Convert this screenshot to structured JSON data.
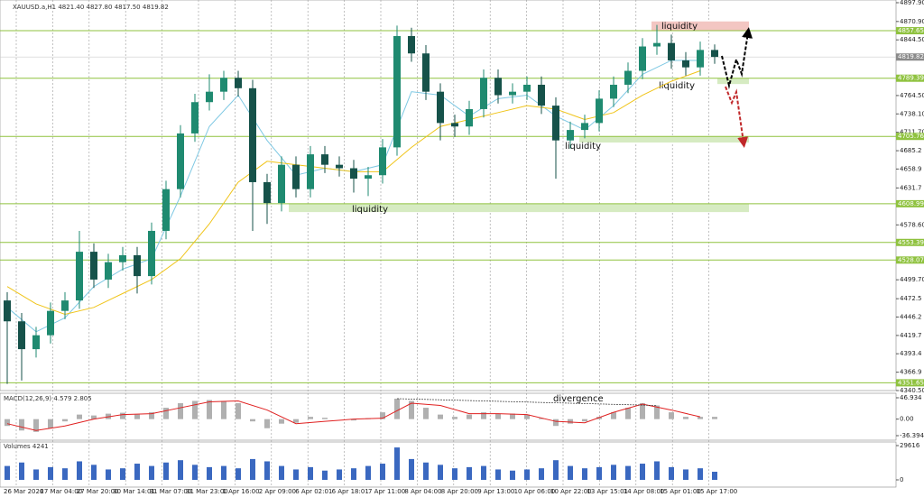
{
  "chart_data": {
    "type": "candlestick",
    "title": "XAUUSD.a,H1 4821.40 4827.80 4817.50 4819.82",
    "categories": [
      "26 Mar 2026",
      "27 Mar 04:00",
      "27 Mar 20:00",
      "30 Mar 14:01",
      "31 Mar 07:00",
      "31 Mar 23:00",
      "1 Apr 16:00",
      "2 Apr 09:00",
      "6 Apr 02:01",
      "6 Apr 18:01",
      "7 Apr 11:00",
      "8 Apr 04:00",
      "8 Apr 20:00",
      "9 Apr 13:00",
      "10 Apr 06:00",
      "10 Apr 22:00",
      "13 Apr 15:01",
      "14 Apr 08:00",
      "15 Apr 01:00",
      "15 Apr 17:00"
    ],
    "open": [
      4470,
      4440,
      4400,
      4420,
      4455,
      4470,
      4540,
      4500,
      4525,
      4535,
      4505,
      4570,
      4630,
      4710,
      4755,
      4770,
      4790,
      4775,
      4640,
      4610,
      4665,
      4630,
      4680,
      4665,
      4660,
      4645,
      4650,
      4690,
      4850,
      4825,
      4770,
      4725,
      4720,
      4745,
      4790,
      4765,
      4770,
      4780,
      4750,
      4700,
      4715,
      4725,
      4760,
      4780,
      4800,
      4835,
      4840,
      4815,
      4805,
      4830
    ],
    "high": [
      4482,
      4452,
      4432,
      4467,
      4482,
      4570,
      4552,
      4537,
      4547,
      4547,
      4582,
      4642,
      4722,
      4767,
      4795,
      4800,
      4800,
      4787,
      4652,
      4677,
      4677,
      4692,
      4692,
      4677,
      4672,
      4662,
      4702,
      4865,
      4862,
      4837,
      4782,
      4737,
      4757,
      4802,
      4802,
      4782,
      4792,
      4792,
      4762,
      4727,
      4737,
      4772,
      4792,
      4812,
      4847,
      4866,
      4852,
      4827,
      4842,
      4838
    ],
    "low": [
      4350,
      4355,
      4388,
      4408,
      4443,
      4458,
      4488,
      4488,
      4513,
      4480,
      4493,
      4558,
      4618,
      4698,
      4743,
      4758,
      4763,
      4570,
      4580,
      4598,
      4618,
      4618,
      4653,
      4648,
      4625,
      4620,
      4638,
      4678,
      4813,
      4758,
      4700,
      4705,
      4708,
      4733,
      4753,
      4753,
      4758,
      4738,
      4645,
      4688,
      4703,
      4713,
      4748,
      4768,
      4788,
      4823,
      4803,
      4793,
      4793,
      4810
    ],
    "close": [
      4440,
      4400,
      4420,
      4455,
      4470,
      4540,
      4500,
      4525,
      4535,
      4505,
      4570,
      4630,
      4710,
      4755,
      4770,
      4790,
      4775,
      4640,
      4610,
      4665,
      4630,
      4680,
      4665,
      4660,
      4645,
      4650,
      4690,
      4850,
      4825,
      4770,
      4725,
      4720,
      4745,
      4790,
      4765,
      4770,
      4780,
      4750,
      4700,
      4715,
      4725,
      4760,
      4780,
      4800,
      4835,
      4840,
      4815,
      4805,
      4830,
      4820
    ],
    "up_color": "#1f8a70",
    "down_color": "#16524a",
    "moving_averages": [
      {
        "color": "#7ec8e3",
        "values": [
          4460,
          4425,
          4445,
          4490,
          4515,
          4530,
          4620,
          4720,
          4765,
          4700,
          4650,
          4660,
          4655,
          4665,
          4770,
          4765,
          4735,
          4760,
          4765,
          4735,
          4715,
          4750,
          4795,
          4815,
          4815
        ]
      },
      {
        "color": "#f0c419",
        "values": [
          4490,
          4465,
          4450,
          4460,
          4480,
          4500,
          4530,
          4580,
          4640,
          4670,
          4665,
          4660,
          4655,
          4655,
          4690,
          4720,
          4730,
          4740,
          4750,
          4745,
          4730,
          4740,
          4765,
          4785,
          4800
        ]
      }
    ],
    "ylim": [
      4340.5,
      4897.9
    ],
    "yticks": [
      {
        "value": 4897.9,
        "label": "4897.90"
      },
      {
        "value": 4870.9,
        "label": "4870.90"
      },
      {
        "value": 4844.5,
        "label": "4844.50"
      },
      {
        "value": 4764.5,
        "label": "4764.50"
      },
      {
        "value": 4738.1,
        "label": "4738.10"
      },
      {
        "value": 4711.7,
        "label": "4711.70"
      },
      4685.2,
      4658.9,
      4631.7,
      {
        "value": 4578.6,
        "label": "4578.60"
      },
      {
        "value": 4499.7,
        "label": "4499.70"
      },
      4472.5,
      4446.2,
      4419.7,
      4393.4,
      4366.9,
      {
        "value": 4340.5,
        "label": "4340.50"
      }
    ],
    "levels": [
      4857.65,
      4789.39,
      4705.76,
      4608.99,
      4553.39,
      4528.07,
      4351.65
    ],
    "level_color": "#8fc23f",
    "current_price": 4819.82,
    "zones": [
      {
        "label": "liquidity",
        "low": 4857.65,
        "high": 4871,
        "color": "#f3c6c2"
      },
      {
        "label": "liquidity",
        "low": 4781,
        "high": 4789.39,
        "color": "#d6ebc2"
      },
      {
        "label": "liquidity",
        "low": 4697,
        "high": 4705.76,
        "color": "#d6ebc2"
      },
      {
        "label": "liquidity",
        "low": 4597,
        "high": 4608.99,
        "color": "#d6ebc2"
      }
    ],
    "macd": {
      "label": "MACD(12,26,9) 4.579 2.805",
      "annotation": "divergence",
      "histogram": [
        -15,
        -25,
        -28,
        -20,
        -5,
        10,
        8,
        12,
        14,
        10,
        15,
        25,
        35,
        40,
        42,
        40,
        35,
        -5,
        -20,
        -10,
        -8,
        5,
        3,
        0,
        -3,
        2,
        15,
        45,
        40,
        25,
        10,
        5,
        10,
        15,
        12,
        12,
        10,
        2,
        -15,
        -10,
        -5,
        5,
        15,
        25,
        35,
        30,
        15,
        5,
        5,
        5
      ],
      "signal": [
        -10,
        -25,
        -15,
        0,
        10,
        12,
        25,
        38,
        40,
        20,
        -10,
        -5,
        0,
        2,
        35,
        30,
        12,
        12,
        10,
        -5,
        -8,
        15,
        33,
        20,
        5
      ],
      "histogram_color": "#b0b0b0",
      "signal_color": "#e02020",
      "ylim": [
        -36.394,
        46.934
      ],
      "yticks": [
        46.934,
        {
          "value": 0,
          "label": "0.00"
        },
        -36.394
      ]
    },
    "volumes": {
      "label": "Volumes 4241",
      "color": "#3a68c0",
      "values": [
        12000,
        15000,
        9000,
        11000,
        10000,
        16000,
        13000,
        9000,
        10000,
        14000,
        12000,
        15000,
        17000,
        13000,
        11000,
        12000,
        10000,
        18000,
        16000,
        12000,
        9000,
        11000,
        8000,
        9000,
        10000,
        12000,
        14000,
        28000,
        18000,
        15000,
        13000,
        10000,
        11000,
        12000,
        9000,
        8000,
        9000,
        10000,
        17000,
        12000,
        10000,
        11000,
        13000,
        12000,
        14000,
        16000,
        11000,
        9000,
        10000,
        7000
      ],
      "ylim": [
        0,
        29616
      ],
      "yticks": [
        29616,
        0
      ]
    }
  }
}
